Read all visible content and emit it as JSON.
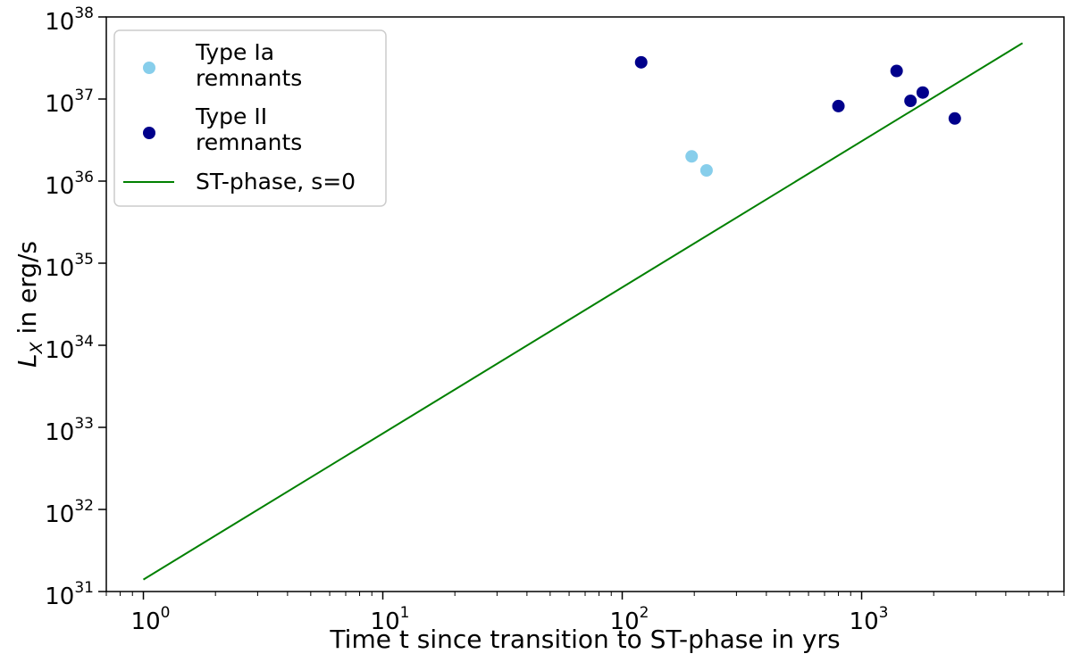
{
  "chart_data": {
    "type": "scatter",
    "xlabel": "Time t since transition to ST-phase in yrs",
    "ylabel": {
      "base": "L",
      "sub": "X",
      "rest": " in erg/s"
    },
    "xscale": "log",
    "yscale": "log",
    "xlim": [
      0.7,
      7000
    ],
    "ylim": [
      1e+31,
      1e+38
    ],
    "x_ticks": [
      {
        "value": 1,
        "base": "10",
        "exp": "0"
      },
      {
        "value": 10,
        "base": "10",
        "exp": "1"
      },
      {
        "value": 100,
        "base": "10",
        "exp": "2"
      },
      {
        "value": 1000,
        "base": "10",
        "exp": "3"
      }
    ],
    "y_ticks": [
      {
        "value": 1e+31,
        "base": "10",
        "exp": "31"
      },
      {
        "value": 1e+32,
        "base": "10",
        "exp": "32"
      },
      {
        "value": 1e+33,
        "base": "10",
        "exp": "33"
      },
      {
        "value": 1e+34,
        "base": "10",
        "exp": "34"
      },
      {
        "value": 1e+35,
        "base": "10",
        "exp": "35"
      },
      {
        "value": 1e+36,
        "base": "10",
        "exp": "36"
      },
      {
        "value": 1e+37,
        "base": "10",
        "exp": "37"
      },
      {
        "value": 1e+38,
        "base": "10",
        "exp": "38"
      }
    ],
    "grid": false,
    "legend_position": "top-left",
    "series": [
      {
        "name": "Type Ia remnants",
        "legend_lines": [
          "Type Ia",
          "remnants"
        ],
        "kind": "scatter",
        "color": "#87ceeb",
        "points": [
          {
            "x": 195,
            "y": 2e+36
          },
          {
            "x": 225,
            "y": 1.35e+36
          }
        ]
      },
      {
        "name": "Type II remnants",
        "legend_lines": [
          "Type II",
          "remnants"
        ],
        "kind": "scatter",
        "color": "#00008b",
        "points": [
          {
            "x": 120,
            "y": 2.8e+37
          },
          {
            "x": 800,
            "y": 8.2e+36
          },
          {
            "x": 1400,
            "y": 2.2e+37
          },
          {
            "x": 1600,
            "y": 9.5e+36
          },
          {
            "x": 1800,
            "y": 1.2e+37
          },
          {
            "x": 2450,
            "y": 5.8e+36
          }
        ]
      },
      {
        "name": "ST-phase, s=0",
        "legend_lines": [
          "ST-phase, s=0"
        ],
        "kind": "line",
        "color": "#008000",
        "points": [
          {
            "x": 1,
            "y": 1.4e+31
          },
          {
            "x": 4700,
            "y": 4.8e+37
          }
        ]
      }
    ]
  }
}
